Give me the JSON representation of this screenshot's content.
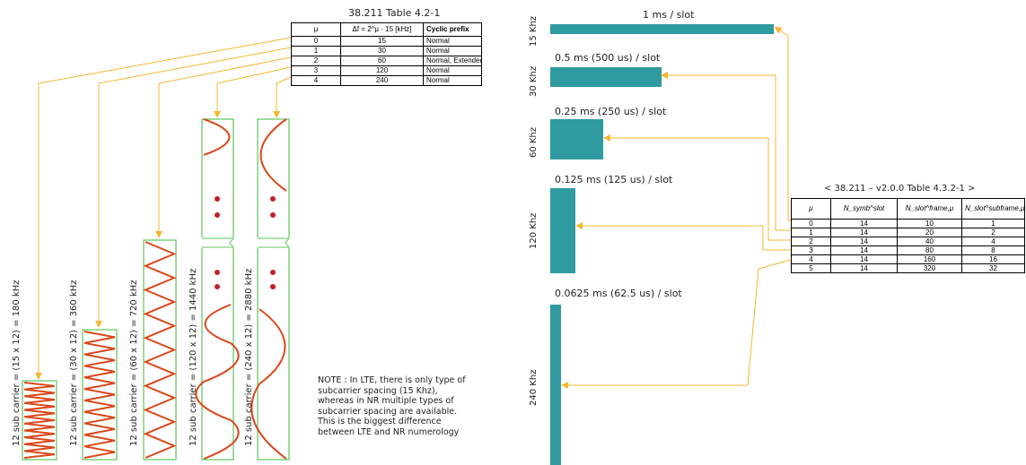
{
  "table1": {
    "caption": "38.211 Table 4.2-1",
    "headers": [
      "μ",
      "Δf = 2^μ · 15 [kHz]",
      "Cyclic prefix"
    ],
    "rows": [
      [
        "0",
        "15",
        "Normal"
      ],
      [
        "1",
        "30",
        "Normal"
      ],
      [
        "2",
        "60",
        "Normal, Extended"
      ],
      [
        "3",
        "120",
        "Normal"
      ],
      [
        "4",
        "240",
        "Normal"
      ]
    ]
  },
  "subcarrier_labels": [
    "12 sub carrier = (15 x 12) = 180 kHz",
    "12 sub carrier = (30 x 12) = 360 kHz",
    "12 sub carrier = (60 x 12) = 720 kHz",
    "12 sub carrier = (120 x 12) = 1440 kHz",
    "12 sub carrier = (240 x 12) = 2880 kHz"
  ],
  "note": "NOTE : In LTE, there is only type of subcarrier spacing (15 Khz), whereas in NR multiple types of subcarrier spacing are available. This is the biggest difference between LTE and NR numerology",
  "slots": [
    {
      "scs": "15 Khz",
      "caption": "1 ms / slot"
    },
    {
      "scs": "30 Khz",
      "caption": "0.5 ms (500 us) / slot"
    },
    {
      "scs": "60 Khz",
      "caption": "0.25 ms (250 us) / slot"
    },
    {
      "scs": "120 Khz",
      "caption": "0.125 ms (125 us) / slot"
    },
    {
      "scs": "240 Khz",
      "caption": "0.0625 ms (62.5 us) / slot"
    }
  ],
  "table2": {
    "caption": "< 38.211 – v2.0.0 Table 4.3.2-1 >",
    "headers": [
      "μ",
      "N_symb^slot",
      "N_slot^frame,μ",
      "N_slot^subframe,μ"
    ],
    "rows": [
      [
        "0",
        "14",
        "10",
        "1"
      ],
      [
        "1",
        "14",
        "20",
        "2"
      ],
      [
        "2",
        "14",
        "40",
        "4"
      ],
      [
        "3",
        "14",
        "80",
        "8"
      ],
      [
        "4",
        "14",
        "160",
        "16"
      ],
      [
        "5",
        "14",
        "320",
        "32"
      ]
    ]
  },
  "colors": {
    "wave": "#d9481c",
    "box_border": "#5cc45c",
    "arrow": "#f5b731",
    "bar": "#2f9aa0",
    "dot": "#c0202a"
  }
}
